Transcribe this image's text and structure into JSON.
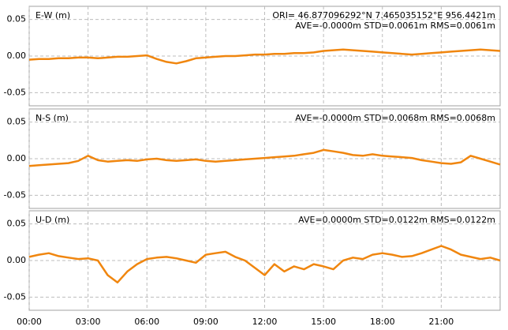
{
  "chart_data": [
    {
      "type": "line",
      "title": "E-W (m)",
      "origin": "ORI= 46.877096292°N   7.465035152°E 956.4421m",
      "annotation": "AVE=-0.0000m STD=0.0061m RMS=0.0061m",
      "x": [
        0,
        0.5,
        1,
        1.5,
        2,
        2.5,
        3,
        3.5,
        4,
        4.5,
        5,
        5.5,
        6,
        6.5,
        7,
        7.5,
        8,
        8.5,
        9,
        9.5,
        10,
        10.5,
        11,
        11.5,
        12,
        12.5,
        13,
        13.5,
        14,
        14.5,
        15,
        15.5,
        16,
        16.5,
        17,
        17.5,
        18,
        18.5,
        19,
        19.5,
        20,
        20.5,
        21,
        21.5,
        22,
        22.5,
        23,
        23.5,
        24
      ],
      "series": [
        {
          "color": "#f0860f",
          "values": [
            -0.005,
            -0.004,
            -0.004,
            -0.003,
            -0.003,
            -0.002,
            -0.002,
            -0.003,
            -0.002,
            -0.001,
            -0.001,
            0.0,
            0.001,
            -0.004,
            -0.008,
            -0.01,
            -0.007,
            -0.003,
            -0.002,
            -0.001,
            0.0,
            0.0,
            0.001,
            0.002,
            0.002,
            0.003,
            0.003,
            0.004,
            0.004,
            0.005,
            0.007,
            0.008,
            0.009,
            0.008,
            0.007,
            0.006,
            0.005,
            0.004,
            0.003,
            0.002,
            0.003,
            0.004,
            0.005,
            0.006,
            0.007,
            0.008,
            0.009,
            0.008,
            0.007
          ]
        }
      ],
      "xlim": [
        0,
        24
      ],
      "ylim": [
        -0.068,
        0.068
      ],
      "yticks": [
        -0.05,
        {
          "value": 0,
          "label": "0.00"
        },
        0.05
      ],
      "grid": true
    },
    {
      "type": "line",
      "title": "N-S (m)",
      "annotation": "AVE=-0.0000m STD=0.0068m RMS=0.0068m",
      "x": [
        0,
        0.5,
        1,
        1.5,
        2,
        2.5,
        3,
        3.5,
        4,
        4.5,
        5,
        5.5,
        6,
        6.5,
        7,
        7.5,
        8,
        8.5,
        9,
        9.5,
        10,
        10.5,
        11,
        11.5,
        12,
        12.5,
        13,
        13.5,
        14,
        14.5,
        15,
        15.5,
        16,
        16.5,
        17,
        17.5,
        18,
        18.5,
        19,
        19.5,
        20,
        20.5,
        21,
        21.5,
        22,
        22.5,
        23,
        23.5,
        24
      ],
      "series": [
        {
          "color": "#f0860f",
          "values": [
            -0.01,
            -0.009,
            -0.008,
            -0.007,
            -0.006,
            -0.003,
            0.004,
            -0.002,
            -0.004,
            -0.003,
            -0.002,
            -0.003,
            -0.001,
            0.0,
            -0.002,
            -0.003,
            -0.002,
            -0.001,
            -0.003,
            -0.004,
            -0.003,
            -0.002,
            -0.001,
            0.0,
            0.001,
            0.002,
            0.003,
            0.004,
            0.006,
            0.008,
            0.012,
            0.01,
            0.008,
            0.005,
            0.004,
            0.006,
            0.004,
            0.003,
            0.002,
            0.001,
            -0.002,
            -0.004,
            -0.006,
            -0.007,
            -0.005,
            0.004,
            0.0,
            -0.004,
            -0.008
          ]
        }
      ],
      "xlim": [
        0,
        24
      ],
      "ylim": [
        -0.068,
        0.068
      ],
      "yticks": [
        -0.05,
        {
          "value": 0,
          "label": "0.00"
        },
        0.05
      ],
      "grid": true
    },
    {
      "type": "line",
      "title": "U-D (m)",
      "annotation": "AVE=0.0000m STD=0.0122m RMS=0.0122m",
      "x": [
        0,
        0.5,
        1,
        1.5,
        2,
        2.5,
        3,
        3.5,
        4,
        4.5,
        5,
        5.5,
        6,
        6.5,
        7,
        7.5,
        8,
        8.5,
        9,
        9.5,
        10,
        10.5,
        11,
        11.5,
        12,
        12.5,
        13,
        13.5,
        14,
        14.5,
        15,
        15.5,
        16,
        16.5,
        17,
        17.5,
        18,
        18.5,
        19,
        19.5,
        20,
        20.5,
        21,
        21.5,
        22,
        22.5,
        23,
        23.5,
        24
      ],
      "series": [
        {
          "color": "#f0860f",
          "values": [
            0.005,
            0.008,
            0.01,
            0.006,
            0.004,
            0.002,
            0.003,
            0.0,
            -0.02,
            -0.03,
            -0.015,
            -0.005,
            0.002,
            0.004,
            0.005,
            0.003,
            0.0,
            -0.003,
            0.008,
            0.01,
            0.012,
            0.005,
            0.0,
            -0.01,
            -0.02,
            -0.005,
            -0.015,
            -0.008,
            -0.012,
            -0.005,
            -0.008,
            -0.012,
            0.0,
            0.004,
            0.002,
            0.008,
            0.01,
            0.008,
            0.005,
            0.006,
            0.01,
            0.015,
            0.02,
            0.015,
            0.008,
            0.005,
            0.002,
            0.004,
            0.0
          ]
        }
      ],
      "xlim": [
        0,
        24
      ],
      "ylim": [
        -0.068,
        0.068
      ],
      "yticks": [
        -0.05,
        {
          "value": 0,
          "label": "0.00"
        },
        0.05
      ],
      "xticks": [
        {
          "value": 0,
          "label": "00:00"
        },
        {
          "value": 3,
          "label": "03:00"
        },
        {
          "value": 6,
          "label": "06:00"
        },
        {
          "value": 9,
          "label": "09:00"
        },
        {
          "value": 12,
          "label": "12:00"
        },
        {
          "value": 15,
          "label": "15:00"
        },
        {
          "value": 18,
          "label": "18:00"
        },
        {
          "value": 21,
          "label": "21:00"
        }
      ],
      "grid": true
    }
  ]
}
